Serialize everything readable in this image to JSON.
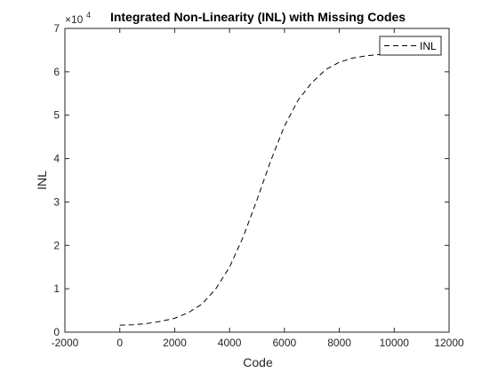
{
  "chart_data": {
    "type": "line",
    "title": "Integrated Non-Linearity (INL) with Missing Codes",
    "xlabel": "Code",
    "ylabel": "INL",
    "xlim": [
      -2000,
      12000
    ],
    "ylim": [
      0,
      70000
    ],
    "xticks": [
      -2000,
      0,
      2000,
      4000,
      6000,
      8000,
      10000,
      12000
    ],
    "yticks": [
      0,
      10000,
      20000,
      30000,
      40000,
      50000,
      60000,
      70000
    ],
    "xtick_labels": [
      "-2000",
      "0",
      "2000",
      "4000",
      "6000",
      "8000",
      "10000",
      "12000"
    ],
    "ytick_labels": [
      "0",
      "1",
      "2",
      "3",
      "4",
      "5",
      "6",
      "7"
    ],
    "y_exponent": {
      "base": "×10",
      "power": "4"
    },
    "grid": false,
    "legend": {
      "position": "top-right",
      "entries": [
        "INL"
      ]
    },
    "series": [
      {
        "name": "INL",
        "color": "#000000",
        "line_style": "dashed",
        "x": [
          0,
          500,
          1000,
          1500,
          2000,
          2500,
          3000,
          3500,
          4000,
          4500,
          5000,
          5500,
          6000,
          6500,
          7000,
          7500,
          8000,
          8500,
          9000,
          9500,
          10000
        ],
        "y": [
          1600,
          1700,
          2000,
          2500,
          3200,
          4500,
          6500,
          10000,
          15000,
          22000,
          30500,
          39500,
          47500,
          53500,
          57500,
          60500,
          62200,
          63200,
          63700,
          64000,
          64200
        ]
      }
    ]
  }
}
